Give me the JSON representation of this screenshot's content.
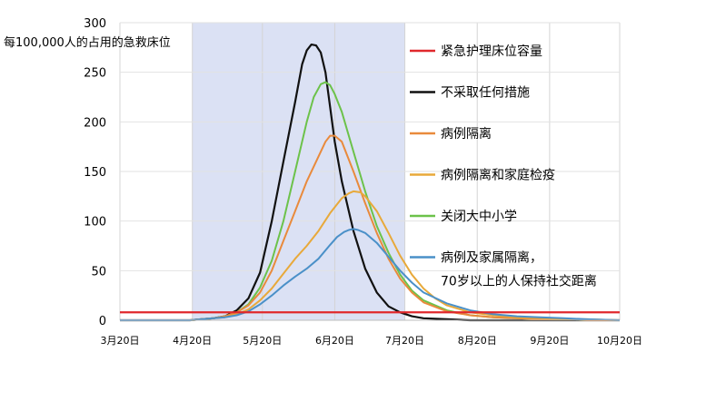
{
  "chart_data": {
    "type": "line",
    "ylabel": "每100,000人的占用的急救床位",
    "xlabel": "",
    "ylim": [
      0,
      300
    ],
    "yticks": [
      0,
      50,
      100,
      150,
      200,
      250,
      300
    ],
    "x_tick_labels": [
      "3月20日",
      "4月20日",
      "5月20日",
      "6月20日",
      "7月20日",
      "8月20日",
      "9月20日",
      "10月20日"
    ],
    "x_tick_days": [
      0,
      31,
      61,
      92,
      122,
      153,
      184,
      214
    ],
    "x_range": [
      0,
      214
    ],
    "shaded_period": {
      "start": 31,
      "end": 122,
      "color": "#dbe1f4"
    },
    "capacity_line": {
      "name": "紧急护理床位容量",
      "value": 8,
      "color": "#e0282c"
    },
    "legend_placement": "right",
    "series": [
      {
        "name": "不采取任何措施",
        "color": "#111111",
        "x": [
          0,
          20,
          25,
          30,
          35,
          40,
          45,
          50,
          55,
          60,
          65,
          70,
          75,
          78,
          80,
          82,
          84,
          86,
          88,
          90,
          92,
          95,
          100,
          105,
          110,
          115,
          120,
          125,
          130,
          140,
          150,
          160,
          170,
          180,
          190,
          200,
          214
        ],
        "y": [
          0,
          0,
          0,
          0,
          1,
          2,
          4,
          10,
          22,
          48,
          100,
          160,
          220,
          258,
          272,
          278,
          277,
          270,
          250,
          215,
          180,
          140,
          90,
          52,
          28,
          14,
          8,
          4,
          2,
          1,
          0,
          0,
          0,
          0,
          0,
          0,
          0
        ]
      },
      {
        "name": "关闭大中小学",
        "color": "#6cc24a",
        "x": [
          0,
          20,
          30,
          35,
          40,
          45,
          50,
          55,
          60,
          65,
          70,
          75,
          80,
          83,
          86,
          88,
          90,
          92,
          95,
          100,
          105,
          110,
          115,
          120,
          125,
          130,
          140,
          150,
          160,
          170,
          180,
          190,
          200,
          214
        ],
        "y": [
          0,
          0,
          0,
          1,
          2,
          4,
          8,
          16,
          33,
          60,
          100,
          150,
          200,
          225,
          238,
          240,
          237,
          228,
          210,
          170,
          130,
          95,
          68,
          46,
          30,
          20,
          10,
          5,
          3,
          2,
          1,
          1,
          0,
          0
        ]
      },
      {
        "name": "病例隔离",
        "color": "#e98a3c",
        "x": [
          0,
          20,
          30,
          35,
          40,
          45,
          50,
          55,
          60,
          65,
          70,
          75,
          80,
          85,
          88,
          90,
          92,
          95,
          100,
          105,
          110,
          115,
          120,
          125,
          130,
          140,
          150,
          160,
          170,
          180,
          190,
          200,
          214
        ],
        "y": [
          0,
          0,
          0,
          1,
          2,
          4,
          8,
          15,
          28,
          50,
          80,
          110,
          140,
          165,
          180,
          186,
          186,
          180,
          150,
          118,
          88,
          62,
          42,
          28,
          18,
          9,
          5,
          3,
          2,
          1,
          1,
          0,
          0
        ]
      },
      {
        "name": "病例隔离和家庭检疫",
        "color": "#e8a93a",
        "x": [
          0,
          20,
          30,
          35,
          40,
          45,
          50,
          55,
          60,
          65,
          70,
          75,
          80,
          85,
          90,
          95,
          98,
          100,
          103,
          105,
          110,
          115,
          120,
          125,
          130,
          135,
          140,
          150,
          160,
          170,
          180,
          190,
          200,
          214
        ],
        "y": [
          0,
          0,
          0,
          1,
          2,
          3,
          6,
          11,
          20,
          32,
          47,
          62,
          75,
          90,
          108,
          123,
          128,
          130,
          129,
          125,
          110,
          88,
          65,
          46,
          32,
          22,
          15,
          8,
          5,
          3,
          2,
          1,
          1,
          0
        ]
      },
      {
        "name": "病例及家属隔离，70岁以上的人保持社交距离",
        "color": "#4a90c8",
        "x": [
          0,
          20,
          30,
          35,
          40,
          45,
          50,
          55,
          60,
          65,
          70,
          75,
          80,
          85,
          90,
          93,
          96,
          98,
          100,
          102,
          105,
          110,
          115,
          120,
          125,
          130,
          140,
          150,
          160,
          170,
          180,
          190,
          200,
          214
        ],
        "y": [
          0,
          0,
          0,
          1,
          2,
          3,
          5,
          9,
          16,
          25,
          35,
          44,
          52,
          62,
          76,
          84,
          89,
          91,
          92,
          91,
          88,
          78,
          64,
          50,
          38,
          28,
          17,
          10,
          6,
          4,
          3,
          2,
          1,
          0
        ]
      }
    ]
  }
}
